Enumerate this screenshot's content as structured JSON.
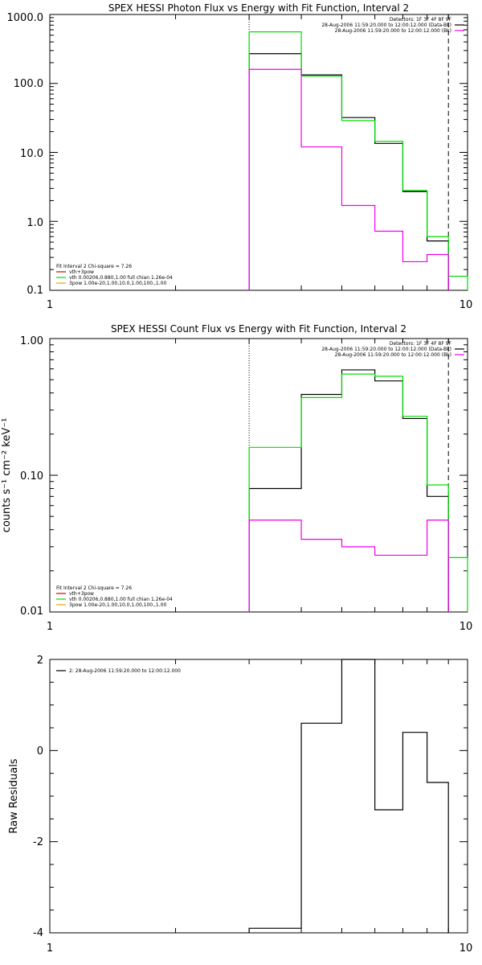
{
  "colors": {
    "data_black": "#000000",
    "model_green": "#00dd00",
    "background_magenta": "#ee00ee",
    "component_red": "#dd0000",
    "component_orange": "#ddaa00",
    "axis": "#000000"
  },
  "chart_data": [
    {
      "type": "line",
      "title": "SPEX HESSI Photon Flux vs Energy with Fit Function, Interval 2",
      "xscale": "log",
      "yscale": "log",
      "xlim": [
        1,
        10
      ],
      "ylim": [
        0.1,
        1000
      ],
      "ytick_labels": [
        "1000.0",
        "100.0",
        "10.0",
        "1.0",
        "0.1"
      ],
      "xtick_labels": [
        "1",
        "10"
      ],
      "bin_edges": [
        3,
        4,
        5,
        6,
        7,
        8,
        9,
        10
      ],
      "series": [
        {
          "key": "data_black",
          "values": [
            270,
            133,
            32,
            13.5,
            2.7,
            0.52,
            null
          ]
        },
        {
          "key": "model_green",
          "values": [
            560,
            128,
            29,
            14.5,
            2.8,
            0.6,
            0.16
          ]
        },
        {
          "key": "background_magenta",
          "values": [
            160,
            12,
            1.7,
            0.72,
            0.26,
            0.33,
            null
          ]
        }
      ],
      "vlines": [
        {
          "x": 3.0,
          "style": "dotted"
        },
        {
          "x": 9.0,
          "style": "dashed"
        }
      ],
      "header_lines": [
        {
          "text": "Detectors: 1F 3F 4F 8F 9F",
          "swatch": ""
        },
        {
          "text": "28-Aug-2006 11:59:20.000 to 12:00:12.000 (Data-Bk)",
          "swatch": "data_black"
        },
        {
          "text": "28-Aug-2006 11:59:20.000 to 12:00:12.000 (Bk)",
          "swatch": "background_magenta"
        }
      ],
      "legend_lines": [
        {
          "text": "Fit Interval 2   Chi-square = 7.26",
          "swatch": ""
        },
        {
          "text": "vth+3pow",
          "swatch": "component_red"
        },
        {
          "text": "vth 0.00206,0.880,1.00  full chian 1.26e-04",
          "swatch": "model_green"
        },
        {
          "text": "3pow 1.00e-20,1.00,10.0,1.00,100.,1.00",
          "swatch": "component_orange"
        }
      ]
    },
    {
      "type": "line",
      "title": "SPEX HESSI Count Flux vs Energy with Fit Function, Interval 2",
      "ylabel": "counts s⁻¹ cm⁻² keV⁻¹",
      "xscale": "log",
      "yscale": "log",
      "xlim": [
        1,
        10
      ],
      "ylim": [
        0.01,
        1
      ],
      "ytick_labels": [
        "1.00",
        "0.10",
        "0.01"
      ],
      "xtick_labels": [
        "1",
        "10"
      ],
      "bin_edges": [
        3,
        4,
        5,
        6,
        7,
        8,
        9,
        10
      ],
      "series": [
        {
          "key": "data_black",
          "values": [
            0.08,
            0.39,
            0.59,
            0.49,
            0.26,
            0.07,
            null
          ]
        },
        {
          "key": "model_green",
          "values": [
            0.16,
            0.37,
            0.55,
            0.53,
            0.27,
            0.085,
            0.025
          ]
        },
        {
          "key": "background_magenta",
          "values": [
            0.047,
            0.034,
            0.03,
            0.026,
            0.026,
            0.047,
            null
          ]
        }
      ],
      "vlines": [
        {
          "x": 3.0,
          "style": "dotted"
        },
        {
          "x": 9.0,
          "style": "dashed"
        }
      ],
      "header_lines": [
        {
          "text": "Detectors: 1F 3F 4F 8F 9F",
          "swatch": ""
        },
        {
          "text": "28-Aug-2006 11:59:20.000 to 12:00:12.000 (Data-Bk)",
          "swatch": "data_black"
        },
        {
          "text": "28-Aug-2006 11:59:20.000 to 12:00:12.000 (Bk)",
          "swatch": "background_magenta"
        }
      ],
      "legend_lines": [
        {
          "text": "Fit Interval 2   Chi-square = 7.26",
          "swatch": ""
        },
        {
          "text": "vth+3pow",
          "swatch": "component_red"
        },
        {
          "text": "vth 0.00206,0.880,1.00  full chian 1.26e-04",
          "swatch": "model_green"
        },
        {
          "text": "3pow 1.00e-20,1.00,10.0,1.00,100.,1.00",
          "swatch": "component_orange"
        }
      ]
    },
    {
      "type": "line",
      "ylabel": "Raw Residuals",
      "xscale": "log",
      "yscale": "linear",
      "xlim": [
        1,
        10
      ],
      "ylim": [
        -4,
        2
      ],
      "ytick_labels": [
        "2",
        "0",
        "-2",
        "-4"
      ],
      "xtick_labels": [
        "1",
        "10"
      ],
      "bin_edges": [
        3,
        4,
        5,
        6,
        7,
        8,
        9
      ],
      "series": [
        {
          "key": "data_black",
          "values": [
            -3.9,
            0.6,
            2.0,
            -1.3,
            0.4,
            -0.7
          ]
        }
      ],
      "legend_lines": [
        {
          "text": "2: 28-Aug-2006 11:59:20.000 to 12:00:12.000",
          "swatch": "data_black"
        }
      ]
    }
  ]
}
